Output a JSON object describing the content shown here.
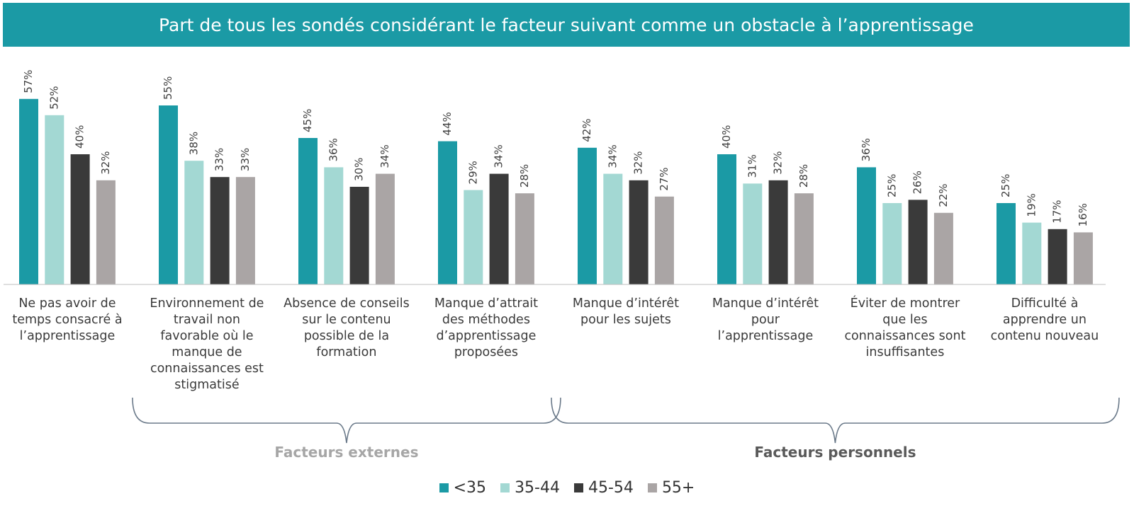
{
  "chart_data": {
    "type": "bar",
    "title": "Part de tous les sondés considérant le facteur suivant comme un obstacle à l’apprentissage",
    "categories": [
      [
        "Ne pas avoir de",
        "temps consacré à",
        "l’apprentissage"
      ],
      [
        "Environnement de",
        "travail non",
        "favorable où le",
        "manque de",
        "connaissances est",
        "stigmatisé"
      ],
      [
        "Absence de conseils",
        "sur le contenu",
        "possible de la",
        "formation"
      ],
      [
        "Manque d’attrait",
        "des méthodes",
        "d’apprentissage",
        "proposées"
      ],
      [
        "Manque d’intérêt",
        "pour les sujets"
      ],
      [
        "Manque d’intérêt",
        "pour l’apprentissage"
      ],
      [
        "Éviter de montrer",
        "que les",
        "connaissances sont",
        "insuffisantes"
      ],
      [
        "Difficulté à",
        "apprendre un",
        "contenu nouveau"
      ]
    ],
    "series": [
      {
        "name": "<35",
        "color": "#1b9aa5",
        "values": [
          57,
          55,
          45,
          44,
          42,
          40,
          36,
          25
        ]
      },
      {
        "name": "35-44",
        "color": "#a3d8d3",
        "values": [
          52,
          38,
          36,
          29,
          34,
          31,
          25,
          19
        ]
      },
      {
        "name": "45-54",
        "color": "#3a3a3a",
        "values": [
          40,
          33,
          30,
          34,
          32,
          32,
          26,
          17
        ]
      },
      {
        "name": "55+",
        "color": "#aaa5a5",
        "values": [
          32,
          33,
          34,
          28,
          27,
          28,
          22,
          16
        ]
      }
    ],
    "value_suffix": "%",
    "ylim": [
      0,
      60
    ],
    "grid": false,
    "legend_position": "bottom",
    "groups": [
      {
        "label": "Facteurs externes",
        "color": "#a6a6a6",
        "categories": [
          1,
          2,
          3
        ]
      },
      {
        "label": "Facteurs personnels",
        "color": "#595959",
        "categories": [
          4,
          5,
          6,
          7
        ]
      }
    ]
  }
}
